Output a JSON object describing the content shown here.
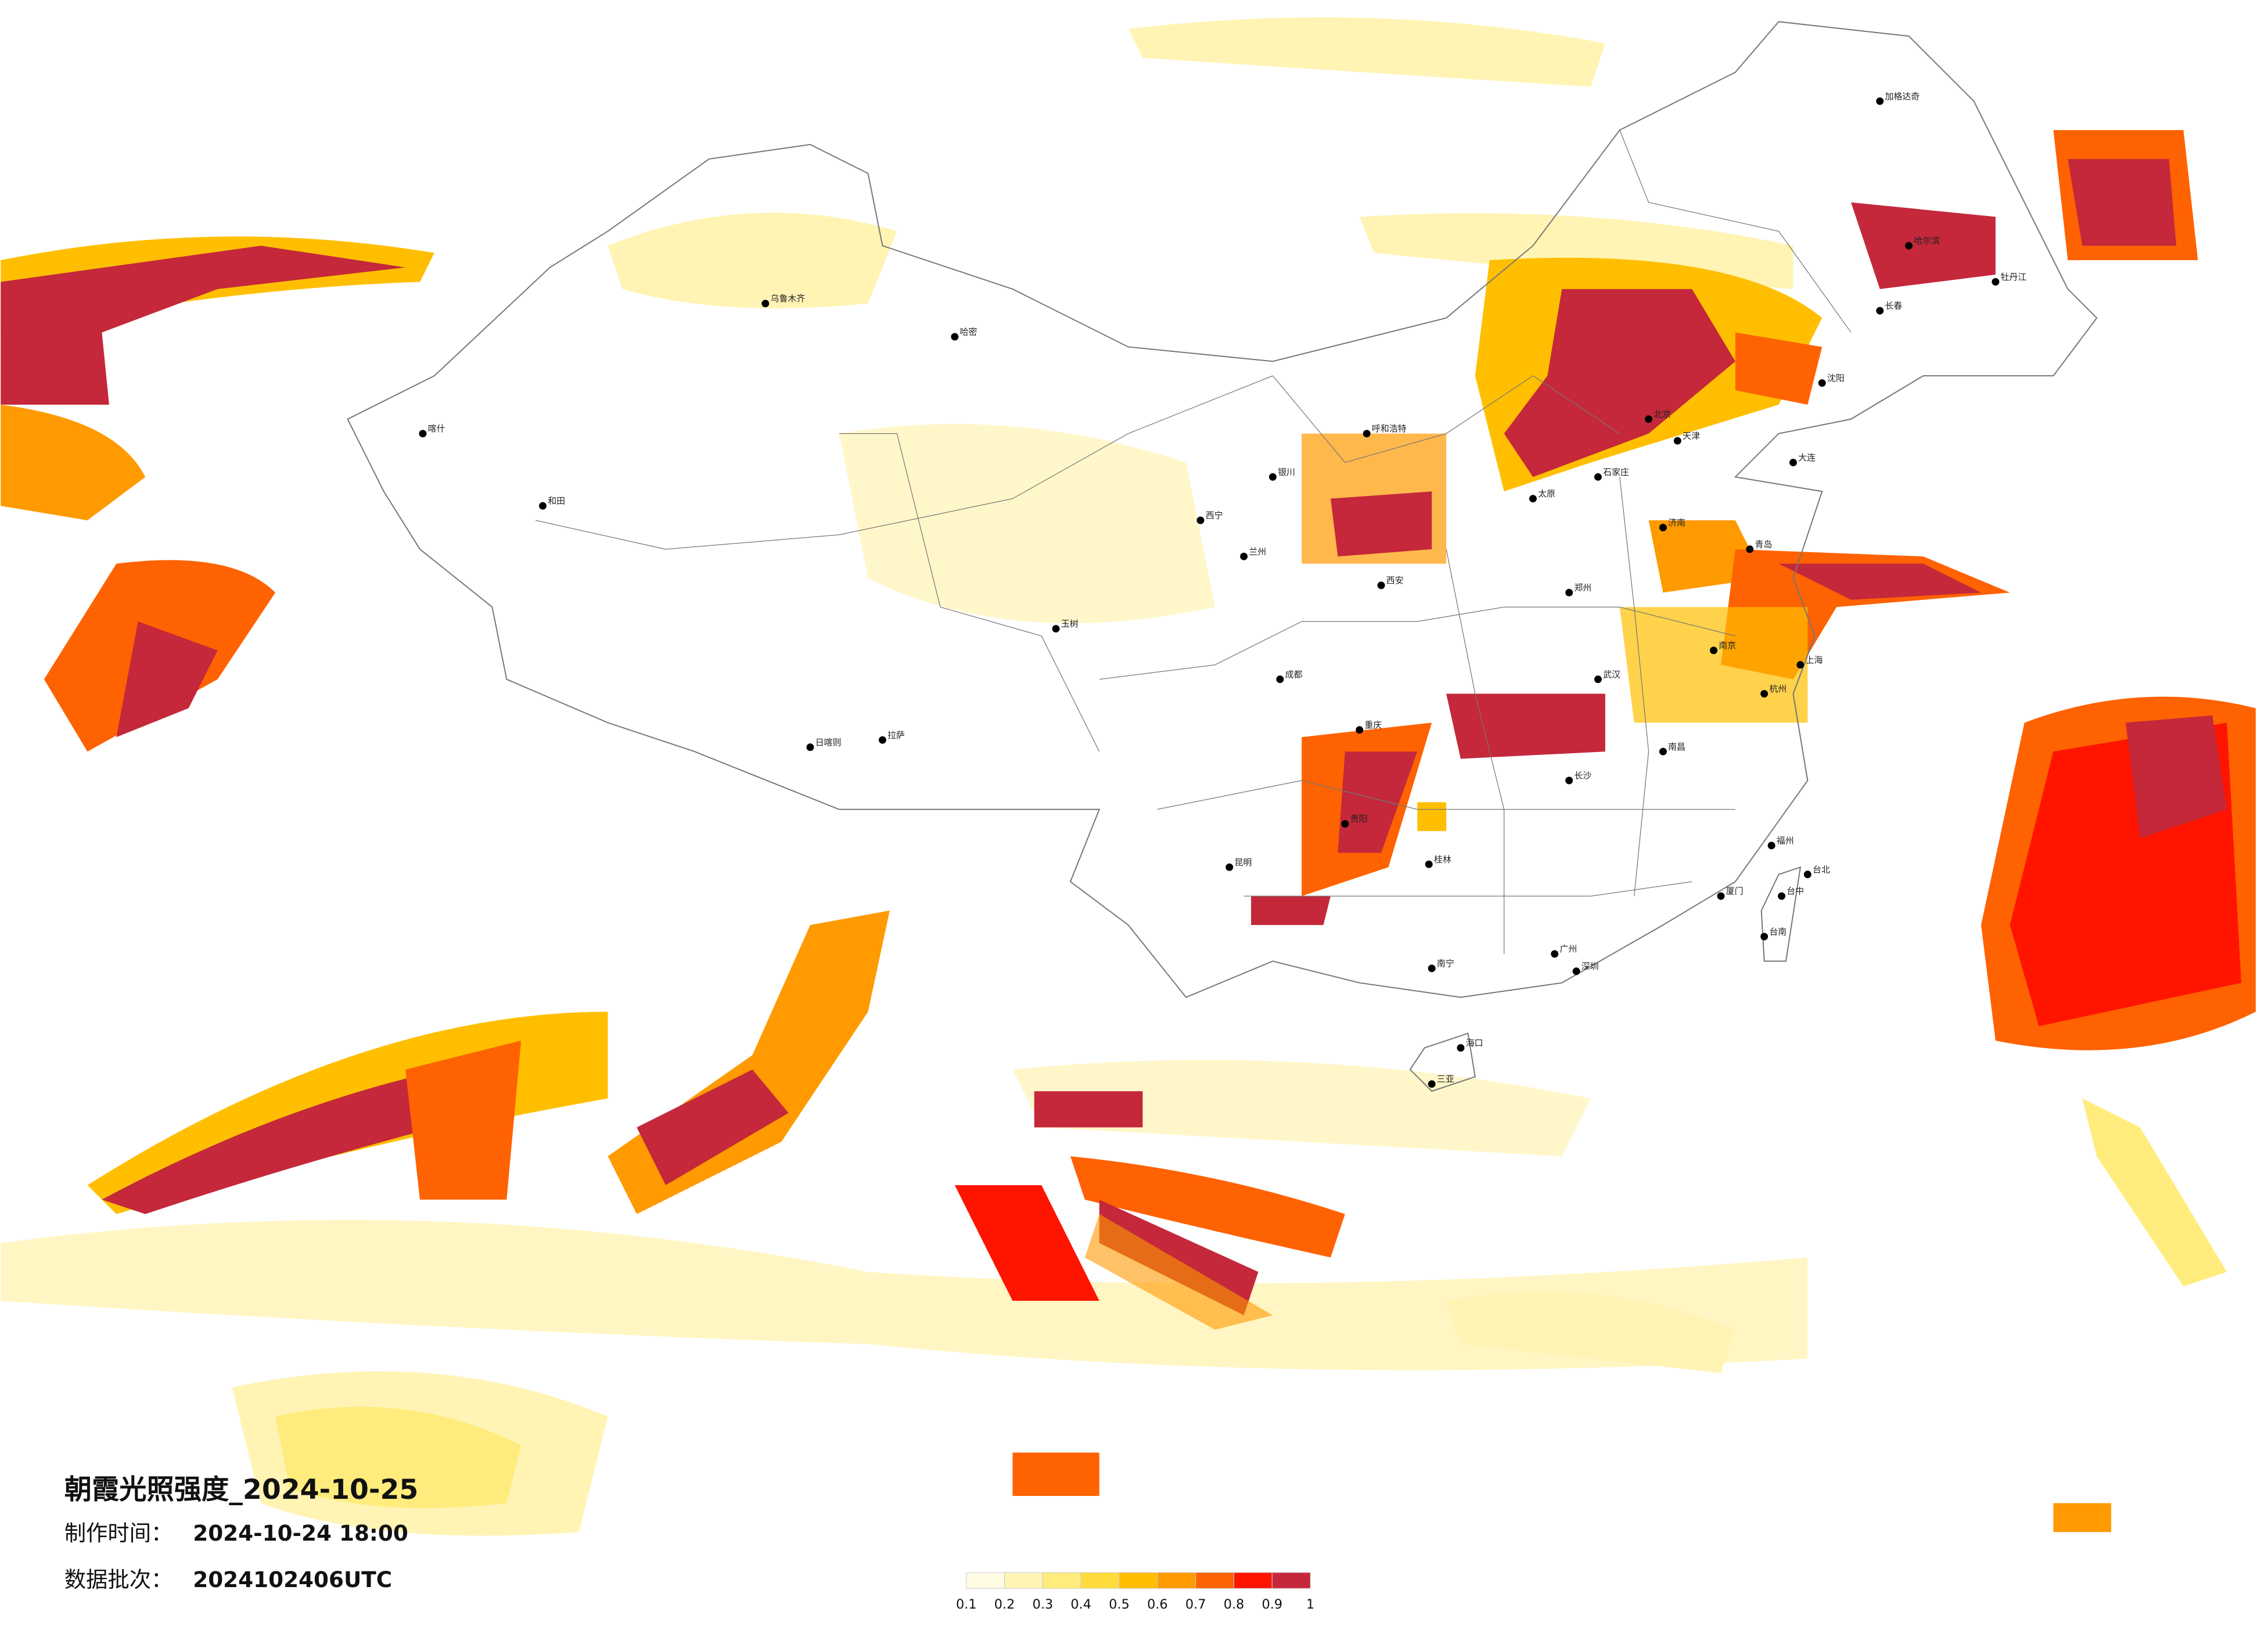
{
  "title": "朝霞光照强度_2024-10-25",
  "made_label": "制作时间：",
  "made_value": "2024-10-24 18:00",
  "batch_label": "数据批次：",
  "batch_value": "2024102406UTC",
  "legend": {
    "ticks": [
      0.1,
      0.2,
      0.3,
      0.4,
      0.5,
      0.6,
      0.7,
      0.8,
      0.9,
      1
    ],
    "colors": [
      "#fffbe3",
      "#fff4b4",
      "#ffec7c",
      "#ffdb3c",
      "#ffbf00",
      "#ff9a00",
      "#ff6200",
      "#ff1400",
      "#c4283a"
    ]
  },
  "cities": [
    "乌鲁木齐",
    "喀什",
    "和田",
    "哈密",
    "拉萨",
    "日喀则",
    "玉树",
    "西宁",
    "兰州",
    "银川",
    "呼和浩特",
    "北京",
    "天津",
    "石家庄",
    "太原",
    "济南",
    "青岛",
    "郑州",
    "西安",
    "成都",
    "重庆",
    "武汉",
    "长沙",
    "南昌",
    "南京",
    "上海",
    "杭州",
    "福州",
    "厦门",
    "广州",
    "深圳",
    "南宁",
    "桂林",
    "海口",
    "三亚",
    "昆明",
    "贵阳",
    "哈尔滨",
    "长春",
    "沈阳",
    "大连",
    "加格达奇",
    "牡丹江",
    "台北",
    "台中",
    "台南"
  ]
}
